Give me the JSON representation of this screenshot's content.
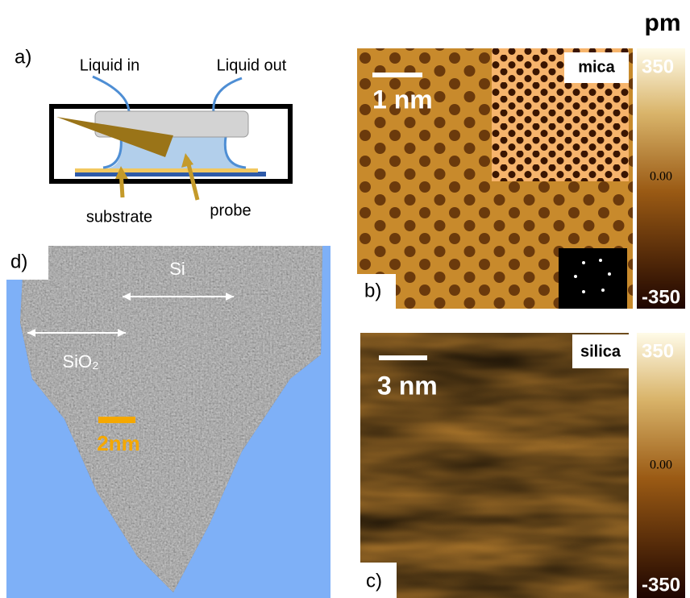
{
  "panel_a": {
    "label": "a)",
    "liquid_in": "Liquid in",
    "liquid_out": "Liquid out",
    "substrate": "substrate",
    "probe": "probe"
  },
  "panel_b": {
    "label": "b)",
    "scale_bar": "1 nm",
    "sample": "mica"
  },
  "panel_c": {
    "label": "c)",
    "scale_bar": "3 nm",
    "sample": "silica"
  },
  "panel_d": {
    "label": "d)",
    "si": "Si",
    "sio2": "SiO₂",
    "scale_bar": "2nm"
  },
  "colorbar": {
    "unit": "pm",
    "top": "350",
    "mid": "0.00",
    "bottom": "-350"
  }
}
